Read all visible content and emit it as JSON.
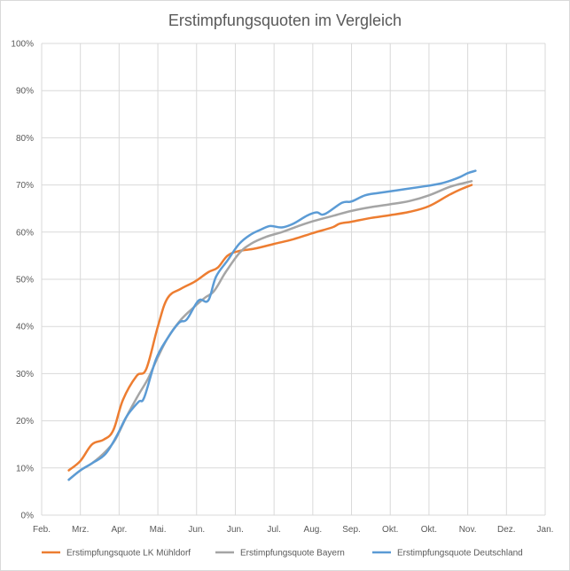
{
  "chart_data": {
    "type": "line",
    "title": "Erstimpfungsquoten im Vergleich",
    "xlabel": "",
    "ylabel": "",
    "ylim": [
      0,
      100
    ],
    "y_ticks": [
      "0%",
      "10%",
      "20%",
      "30%",
      "40%",
      "50%",
      "60%",
      "70%",
      "80%",
      "90%",
      "100%"
    ],
    "x_ticks": [
      "Feb.",
      "Mrz.",
      "Apr.",
      "Mai.",
      "Jun.",
      "Jun.",
      "Jul.",
      "Aug.",
      "Sep.",
      "Okt.",
      "Okt.",
      "Nov.",
      "Dez.",
      "Jan."
    ],
    "xlim": [
      0,
      13
    ],
    "grid": true,
    "legend_position": "bottom",
    "series": [
      {
        "name": "Erstimpfungsquote LK Mühldorf",
        "color": "#ED7D31",
        "points": [
          [
            0.7,
            9.5
          ],
          [
            1.0,
            11.5
          ],
          [
            1.3,
            15
          ],
          [
            1.6,
            16
          ],
          [
            1.85,
            18
          ],
          [
            2.1,
            24.5
          ],
          [
            2.45,
            29.5
          ],
          [
            2.7,
            31
          ],
          [
            3.0,
            40
          ],
          [
            3.25,
            46
          ],
          [
            3.6,
            48
          ],
          [
            3.95,
            49.5
          ],
          [
            4.3,
            51.5
          ],
          [
            4.55,
            52.5
          ],
          [
            4.8,
            55
          ],
          [
            5.1,
            56
          ],
          [
            5.5,
            56.5
          ],
          [
            6.0,
            57.5
          ],
          [
            6.5,
            58.5
          ],
          [
            7.0,
            59.8
          ],
          [
            7.5,
            61
          ],
          [
            7.7,
            61.8
          ],
          [
            8.0,
            62.2
          ],
          [
            8.5,
            63
          ],
          [
            9.0,
            63.6
          ],
          [
            9.5,
            64.3
          ],
          [
            10.0,
            65.5
          ],
          [
            10.5,
            67.8
          ],
          [
            10.8,
            69
          ],
          [
            11.1,
            70
          ]
        ]
      },
      {
        "name": "Erstimpfungsquote Bayern",
        "color": "#A5A5A5",
        "points": [
          [
            0.7,
            7.5
          ],
          [
            1.0,
            9.5
          ],
          [
            1.3,
            11
          ],
          [
            1.65,
            13.5
          ],
          [
            1.9,
            16
          ],
          [
            2.2,
            21
          ],
          [
            2.5,
            25.5
          ],
          [
            2.75,
            29
          ],
          [
            3.0,
            33.5
          ],
          [
            3.25,
            37.5
          ],
          [
            3.55,
            41
          ],
          [
            3.85,
            43.5
          ],
          [
            4.2,
            46
          ],
          [
            4.45,
            47.5
          ],
          [
            4.75,
            51.5
          ],
          [
            5.1,
            55.5
          ],
          [
            5.4,
            57.5
          ],
          [
            5.8,
            59
          ],
          [
            6.2,
            60
          ],
          [
            6.6,
            61.2
          ],
          [
            7.0,
            62.3
          ],
          [
            7.5,
            63.4
          ],
          [
            8.0,
            64.5
          ],
          [
            8.5,
            65.3
          ],
          [
            9.0,
            65.9
          ],
          [
            9.5,
            66.6
          ],
          [
            10.0,
            67.8
          ],
          [
            10.5,
            69.5
          ],
          [
            10.8,
            70.2
          ],
          [
            11.1,
            70.8
          ]
        ]
      },
      {
        "name": "Erstimpfungsquote Deutschland",
        "color": "#5B9BD5",
        "points": [
          [
            0.7,
            7.5
          ],
          [
            1.0,
            9.5
          ],
          [
            1.3,
            11
          ],
          [
            1.65,
            13
          ],
          [
            1.95,
            17
          ],
          [
            2.2,
            21
          ],
          [
            2.5,
            24
          ],
          [
            2.65,
            25
          ],
          [
            2.95,
            33
          ],
          [
            3.25,
            37.5
          ],
          [
            3.55,
            40.8
          ],
          [
            3.75,
            41.5
          ],
          [
            4.05,
            45.5
          ],
          [
            4.3,
            45.5
          ],
          [
            4.5,
            50.5
          ],
          [
            4.8,
            54
          ],
          [
            5.1,
            57.5
          ],
          [
            5.4,
            59.5
          ],
          [
            5.65,
            60.5
          ],
          [
            5.9,
            61.3
          ],
          [
            6.2,
            61
          ],
          [
            6.5,
            61.8
          ],
          [
            6.85,
            63.5
          ],
          [
            7.1,
            64.2
          ],
          [
            7.3,
            63.8
          ],
          [
            7.75,
            66.2
          ],
          [
            8.0,
            66.5
          ],
          [
            8.35,
            67.8
          ],
          [
            8.7,
            68.3
          ],
          [
            9.2,
            68.9
          ],
          [
            9.7,
            69.5
          ],
          [
            10.3,
            70.3
          ],
          [
            10.75,
            71.5
          ],
          [
            11.0,
            72.5
          ],
          [
            11.2,
            73
          ]
        ]
      }
    ]
  }
}
